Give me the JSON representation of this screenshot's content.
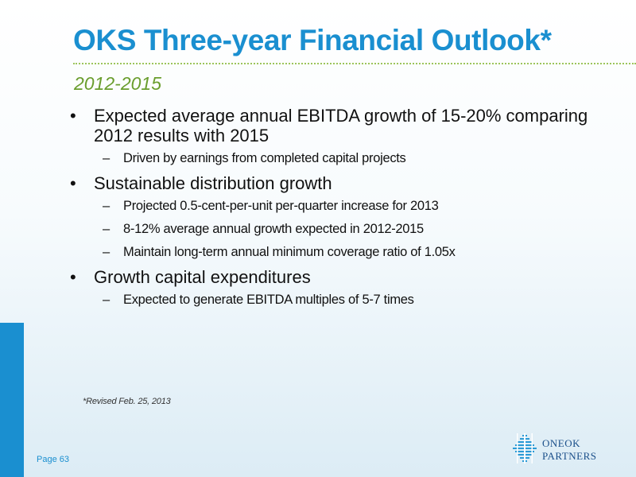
{
  "slide": {
    "title": "OKS Three-year Financial Outlook*",
    "subtitle": "2012-2015",
    "bullets": [
      {
        "text": "Expected average annual EBITDA growth of 15-20% comparing 2012 results with 2015",
        "sub": [
          "Driven by earnings from completed capital projects"
        ]
      },
      {
        "text": "Sustainable distribution growth",
        "sub": [
          "Projected 0.5-cent-per-unit per-quarter increase for 2013",
          "8-12% average annual growth expected in 2012-2015",
          "Maintain long-term annual minimum coverage ratio of 1.05x"
        ]
      },
      {
        "text": "Growth capital expenditures",
        "sub": [
          "Expected to generate EBITDA multiples of 5-7 times"
        ]
      }
    ],
    "bullet_mark": "•",
    "sub_mark": "–",
    "footnote": "*Revised Feb. 25, 2013",
    "page_label": "Page 63"
  },
  "logo": {
    "line1": "ONEOK",
    "line2": "PARTNERS",
    "icon": "diamond-grid-icon",
    "color": "#1a4f8a"
  },
  "colors": {
    "title": "#1a8fd0",
    "subtitle": "#6a9e2e",
    "rule": "#9cc45a",
    "accent_bar": "#1a8fd0"
  }
}
